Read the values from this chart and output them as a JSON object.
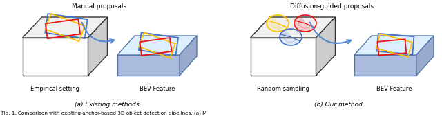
{
  "fig_width": 6.4,
  "fig_height": 1.69,
  "dpi": 100,
  "background_color": "#ffffff",
  "label_empirical": "Empirical setting",
  "label_bev1": "BEV Feature",
  "label_random": "Random sampling",
  "label_bev2": "BEV Feature",
  "caption_a": "(a) Existing methods",
  "caption_b": "(b) Our method",
  "arrow_label_left": "Manual proposals",
  "arrow_label_right": "Diffusion-guided proposals",
  "bottom_text": "Fig. 1. Comparison with existing anchor-based 3D object detection pipelines. (a) M",
  "colors": {
    "blue": "#4472C4",
    "red": "#EE1111",
    "yellow": "#FFC000",
    "plate_top": "#DDEEFF",
    "plate_side": "#AABBDD",
    "plate_right": "#99AACC",
    "arrow_color": "#5588CC",
    "border": "#333333"
  }
}
